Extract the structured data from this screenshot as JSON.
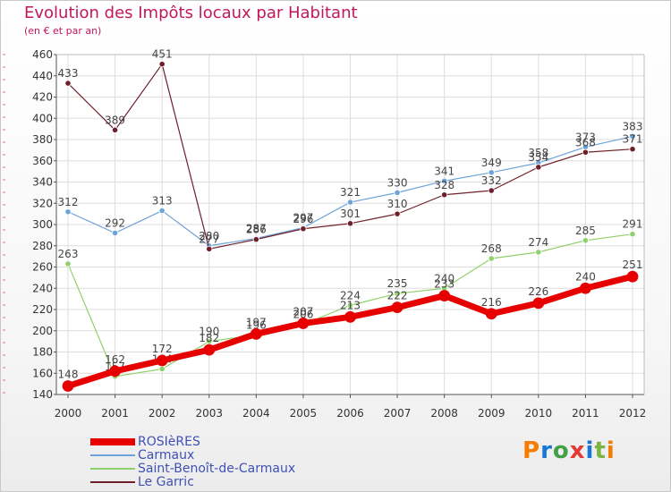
{
  "colors": {
    "title": "#c2185b",
    "rosieres": "#e60000",
    "carmaux": "#6ca3d9",
    "saint_benoit": "#8fd16a",
    "le_garric": "#6e1f2a",
    "legend_text": "#3f51b5"
  },
  "chart_data": {
    "type": "line",
    "title": "Evolution des Impôts locaux par Habitant",
    "subtitle": "(en € et par an)",
    "xlabel": "",
    "ylabel": "",
    "ylim": [
      140,
      460
    ],
    "yticks": [
      140,
      160,
      180,
      200,
      220,
      240,
      260,
      280,
      300,
      320,
      340,
      360,
      380,
      400,
      420,
      440,
      460
    ],
    "grid": true,
    "legend": "bottom-left",
    "categories": [
      "2000",
      "2001",
      "2002",
      "2003",
      "2004",
      "2005",
      "2006",
      "2007",
      "2008",
      "2009",
      "2010",
      "2011",
      "2012"
    ],
    "series": [
      {
        "key": "carmaux",
        "name": "Carmaux",
        "values": [
          312,
          292,
          313,
          280,
          287,
          297,
          321,
          330,
          341,
          349,
          358,
          373,
          383
        ]
      },
      {
        "key": "le_garric",
        "name": "Le Garric",
        "values": [
          433,
          389,
          451,
          277,
          286,
          296,
          301,
          310,
          328,
          332,
          354,
          368,
          371
        ]
      },
      {
        "key": "saint_benoit",
        "name": "Saint-Benoît-de-Carmaux",
        "values": [
          263,
          157,
          164,
          190,
          196,
          206,
          224,
          235,
          240,
          268,
          274,
          285,
          291
        ]
      },
      {
        "key": "rosieres",
        "name": "ROSIèRES",
        "values": [
          148,
          162,
          172,
          182,
          197,
          207,
          213,
          222,
          233,
          216,
          226,
          240,
          251
        ]
      }
    ]
  },
  "legend": [
    {
      "key": "rosieres",
      "label": "ROSIèRES"
    },
    {
      "key": "carmaux",
      "label": "Carmaux"
    },
    {
      "key": "saint_benoit",
      "label": "Saint-Benoît-de-Carmaux"
    },
    {
      "key": "le_garric",
      "label": "Le Garric"
    }
  ],
  "logo": {
    "text": "Proxiti"
  }
}
